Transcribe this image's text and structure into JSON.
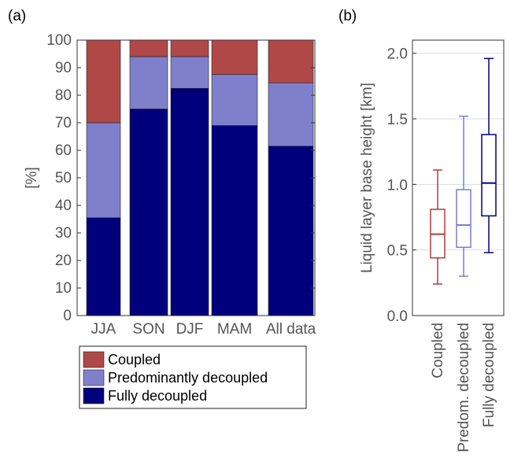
{
  "panels": {
    "a": "(a)",
    "b": "(b)"
  },
  "colors": {
    "coupled": "#b04848",
    "predominantly": "#7e80cc",
    "fully": "#00007c",
    "coupled_box": "#b03c3c",
    "predom_box": "#7a7ccf",
    "fully_box": "#000080"
  },
  "chart_data": [
    {
      "type": "bar",
      "stacked": true,
      "title": "",
      "xlabel": "",
      "ylabel": "[%]",
      "ylim": [
        0,
        100
      ],
      "yticks": [
        "0",
        "10",
        "20",
        "30",
        "40",
        "50",
        "60",
        "70",
        "80",
        "90",
        "100"
      ],
      "categories": [
        "JJA",
        "SON",
        "DJF",
        "MAM",
        "All data"
      ],
      "series": [
        {
          "name": "Fully decoupled",
          "values": [
            35.5,
            75,
            82.5,
            69,
            61.5
          ]
        },
        {
          "name": "Predominantly decoupled",
          "values": [
            34.5,
            19,
            11.5,
            18.5,
            23
          ]
        },
        {
          "name": "Coupled",
          "values": [
            30,
            6,
            6,
            12.5,
            15.5
          ]
        }
      ],
      "legend_placement": "bottom"
    },
    {
      "type": "box",
      "title": "",
      "xlabel": "",
      "ylabel": "Liquid layer base height [km]",
      "ylim": [
        0,
        2.1
      ],
      "yticks": [
        "0.0",
        "0.5",
        "1.0",
        "1.5",
        "2.0"
      ],
      "grid": true,
      "categories": [
        "Coupled",
        "Predom. decoupled",
        "Fully decoupled"
      ],
      "boxes": [
        {
          "min": 0.24,
          "q1": 0.44,
          "median": 0.62,
          "q3": 0.81,
          "max": 1.11
        },
        {
          "min": 0.3,
          "q1": 0.52,
          "median": 0.69,
          "q3": 0.96,
          "max": 1.52
        },
        {
          "min": 0.48,
          "q1": 0.76,
          "median": 1.01,
          "q3": 1.38,
          "max": 1.96
        }
      ]
    }
  ]
}
